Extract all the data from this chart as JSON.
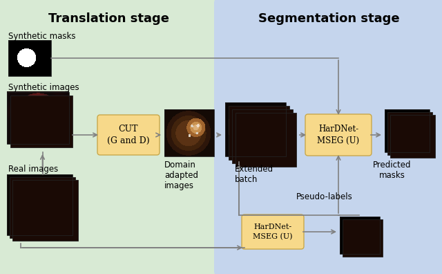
{
  "title_left": "Translation stage",
  "title_right": "Segmentation stage",
  "bg_left_color": "#d8ead4",
  "bg_right_color": "#c5d5ed",
  "box_color": "#f7d98a",
  "box_edge_color": "#c8a84b",
  "arrow_color": "#808080",
  "text_color": "#000000",
  "label_synthetic_masks": "Synthetic masks",
  "label_synthetic_images": "Synthetic images",
  "label_real_images": "Real images",
  "label_cut": "CUT\n(G and D)",
  "label_domain_adapted": "Domain\nadapted\nimages",
  "label_extended_batch": "Extended\nbatch",
  "label_hardnet_top": "HarDNet-\nMSEG (U)",
  "label_hardnet_bottom": "HarDNet-\nMSEG (U)",
  "label_predicted_masks": "Predicted\nmasks",
  "label_pseudo_labels": "Pseudo-labels",
  "figsize": [
    6.4,
    3.96
  ],
  "dpi": 100
}
